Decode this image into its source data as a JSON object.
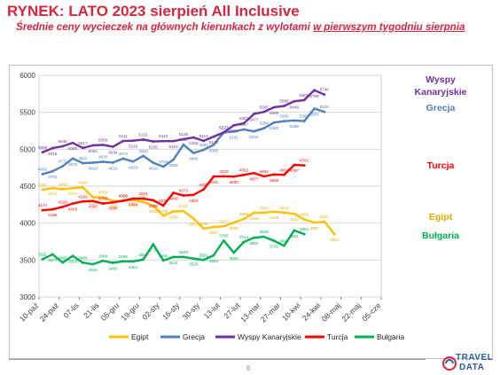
{
  "header": {
    "title": "RYNEK: LATO 2023 sierpień All Inclusive",
    "subtitle_part1": "Średnie ceny wycieczek na głównych kierunkach z wylotami ",
    "subtitle_part2": "w pierwszym tygodniu sierpnia"
  },
  "footer": {
    "page_number": "6",
    "logo_line1": "TRAVEL",
    "logo_line2": "DATA",
    "logo_colors": [
      "#2c5da8",
      "#d8253d"
    ]
  },
  "chart_data": {
    "type": "line",
    "title": "",
    "xlabel": "",
    "ylabel": "",
    "ylim": [
      3000,
      6000
    ],
    "yticks": [
      3000,
      3500,
      4000,
      4500,
      5000,
      5500,
      6000
    ],
    "grid": true,
    "legend_position": "bottom",
    "x_tick_labels": [
      "10-paź",
      "24-paź",
      "07-lis",
      "21-lis",
      "05-gru",
      "19-gru",
      "02-sty",
      "16-sty",
      "30-sty",
      "13-lut",
      "27-lut",
      "13-mar",
      "27-mar",
      "10-kwi",
      "24-kwi",
      "08-maj",
      "22-maj",
      "05-cze"
    ],
    "series": [
      {
        "name": "Egipt",
        "color": "#ffc000",
        "label_color": "#e8a800",
        "side_label": "Egipt",
        "values": [
          4451,
          4474,
          4459,
          4474,
          4484,
          4350,
          4350,
          4300,
          4300,
          4315,
          4285,
          4235,
          4100,
          4159,
          4162,
          4062,
          3926,
          3947,
          3957,
          4006,
          4056,
          4139,
          4141,
          4155,
          4141,
          4127,
          4050,
          4006,
          4021,
          3851
        ]
      },
      {
        "name": "Grecja",
        "color": "#4f81bd",
        "label_color": "#4f81bd",
        "side_label": "Grecja",
        "values": [
          4663,
          4702,
          4771,
          4875,
          4811,
          4818,
          4830,
          4819,
          4873,
          4833,
          4910,
          4816,
          4764,
          4858,
          5062,
          4948,
          4991,
          5060,
          5227,
          5241,
          5267,
          5242,
          5284,
          5362,
          5380,
          5389,
          5381,
          5550,
          5506
        ]
      },
      {
        "name": "Wyspy Kanaryjskie",
        "color": "#7030a0",
        "label_color": "#7030a0",
        "side_label_line1": "Wyspy",
        "side_label_line2": "Kanaryjskie",
        "values": [
          4959,
          5015,
          5040,
          5086,
          5017,
          5052,
          5059,
          5034,
          5111,
          5116,
          5131,
          5105,
          5110,
          5110,
          5136,
          5159,
          5113,
          5170,
          5227,
          5323,
          5351,
          5477,
          5505,
          5568,
          5585,
          5649,
          5665,
          5799,
          5740
        ]
      },
      {
        "name": "Turcja",
        "color": "#ff0000",
        "label_color": "#ff0000",
        "side_label": "Turcja",
        "values": [
          4174,
          4186,
          4220,
          4265,
          4293,
          4300,
          4265,
          4280,
          4303,
          4331,
          4331,
          4309,
          4237,
          4409,
          4373,
          4383,
          4455,
          4631,
          4633,
          4630,
          4652,
          4677,
          4632,
          4658,
          4653,
          4787,
          4781
        ]
      },
      {
        "name": "Bułgaria",
        "color": "#00b050",
        "label_color": "#00b050",
        "side_label": "Bułgaria",
        "values": [
          3511,
          3577,
          3465,
          3556,
          3464,
          3444,
          3489,
          3463,
          3482,
          3481,
          3506,
          3713,
          3494,
          3541,
          3542,
          3520,
          3501,
          3564,
          3765,
          3600,
          3744,
          3802,
          3815,
          3761,
          3693,
          3901,
          3851
        ]
      }
    ]
  }
}
